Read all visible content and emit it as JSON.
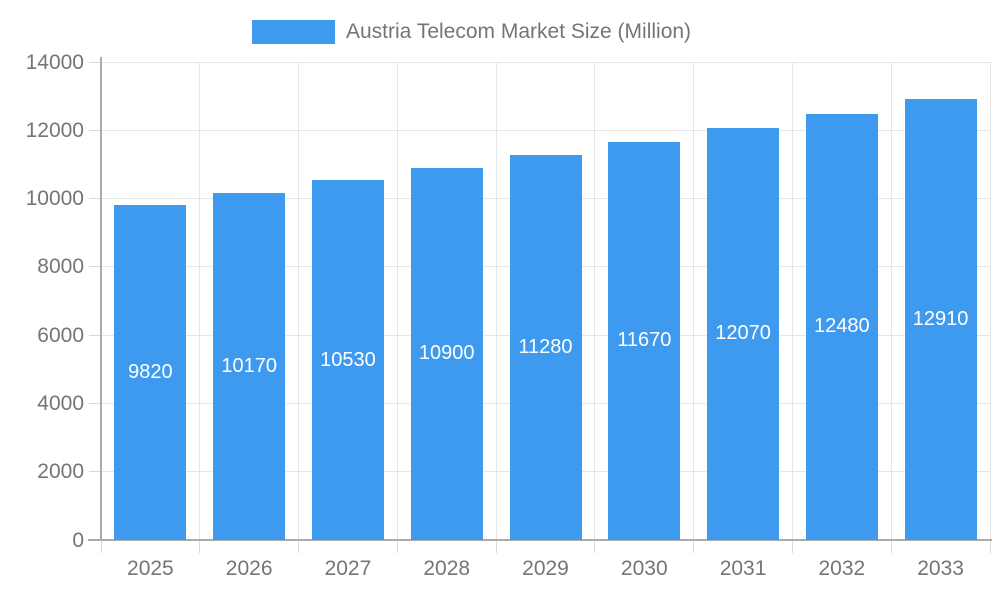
{
  "legend": {
    "label": "Austria Telecom Market Size (Million)",
    "swatch_color": "#3E9AEF"
  },
  "chart_data": {
    "type": "bar",
    "title": "Austria Telecom Market Size (Million)",
    "series_name": "Austria Telecom Market Size (Million)",
    "categories": [
      "2025",
      "2026",
      "2027",
      "2028",
      "2029",
      "2030",
      "2031",
      "2032",
      "2033"
    ],
    "values": [
      9820,
      10170,
      10530,
      10900,
      11280,
      11670,
      12070,
      12480,
      12910
    ],
    "value_labels": [
      "9820",
      "10170",
      "10530",
      "10900",
      "11280",
      "11670",
      "12070",
      "12480",
      "12910"
    ],
    "xlabel": "",
    "ylabel": "",
    "ylim": [
      0,
      14000
    ],
    "y_ticks": [
      0,
      2000,
      4000,
      6000,
      8000,
      10000,
      12000,
      14000
    ],
    "y_tick_labels": [
      "0",
      "2000",
      "4000",
      "6000",
      "8000",
      "10000",
      "12000",
      "14000"
    ],
    "grid": "on",
    "legend_position": "top",
    "colors": {
      "bar": "#3E9AEF",
      "value_label": "#FFFFFF",
      "axis_label": "#757575",
      "legend_label": "#757575"
    }
  }
}
